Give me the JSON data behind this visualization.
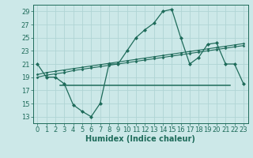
{
  "xlabel": "Humidex (Indice chaleur)",
  "bg_color": "#cce8e8",
  "grid_color": "#b0d4d4",
  "line_color": "#1e6b5a",
  "ylim": [
    12,
    30
  ],
  "yticks": [
    13,
    15,
    17,
    19,
    21,
    23,
    25,
    27,
    29
  ],
  "xlim": [
    -0.5,
    23.5
  ],
  "xticks": [
    0,
    1,
    2,
    3,
    4,
    5,
    6,
    7,
    8,
    9,
    10,
    11,
    12,
    13,
    14,
    15,
    16,
    17,
    18,
    19,
    20,
    21,
    22,
    23
  ],
  "line1_x": [
    0,
    1,
    2,
    3,
    4,
    5,
    6,
    7,
    8,
    9,
    10,
    11,
    12,
    13,
    14,
    15,
    16,
    17,
    18,
    19,
    20,
    21,
    22,
    23
  ],
  "line1_y": [
    21,
    19,
    19,
    18,
    14.8,
    13.8,
    13,
    15,
    21,
    21,
    23.0,
    25,
    26.2,
    27.2,
    29,
    29.3,
    25,
    21,
    22,
    24.0,
    24.2,
    21,
    21,
    18
  ],
  "line2_x": [
    3,
    22
  ],
  "line2_y": [
    17.8,
    17.8
  ],
  "line3_x": [
    0,
    1,
    2,
    3,
    4,
    5,
    6,
    7,
    8,
    9,
    10,
    11,
    12,
    13,
    14,
    15,
    16,
    17,
    18,
    19,
    20,
    21,
    22,
    23
  ],
  "line3_y": [
    19.0,
    19.3,
    19.5,
    19.7,
    20.0,
    20.2,
    20.4,
    20.6,
    20.8,
    21.0,
    21.2,
    21.4,
    21.6,
    21.8,
    22.0,
    22.2,
    22.4,
    22.6,
    22.8,
    23.0,
    23.2,
    23.4,
    23.6,
    23.8
  ],
  "line4_x": [
    0,
    1,
    2,
    3,
    4,
    5,
    6,
    7,
    8,
    9,
    10,
    11,
    12,
    13,
    14,
    15,
    16,
    17,
    18,
    19,
    20,
    21,
    22,
    23
  ],
  "line4_y": [
    19.4,
    19.7,
    19.9,
    20.1,
    20.3,
    20.5,
    20.7,
    20.9,
    21.1,
    21.3,
    21.5,
    21.7,
    21.9,
    22.1,
    22.3,
    22.5,
    22.7,
    22.9,
    23.1,
    23.3,
    23.5,
    23.7,
    23.9,
    24.1
  ],
  "xlabel_fontsize": 7,
  "tick_fontsize": 6
}
